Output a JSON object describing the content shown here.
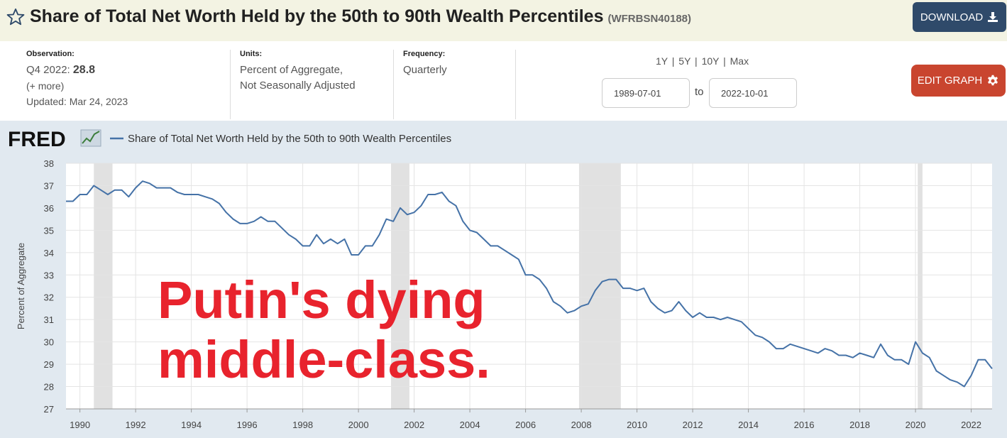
{
  "header": {
    "title": "Share of Total Net Worth Held by the 50th to 90th Wealth Percentiles",
    "series_id": "(WFRBSN40188)",
    "download_label": "DOWNLOAD"
  },
  "meta": {
    "observation_label": "Observation:",
    "observation_period": "Q4 2022:",
    "observation_value": "28.8",
    "more_label": "(+ more)",
    "updated": "Updated: Mar 24, 2023",
    "units_label": "Units:",
    "units_line1": "Percent of Aggregate,",
    "units_line2": "Not Seasonally Adjusted",
    "frequency_label": "Frequency:",
    "frequency_value": "Quarterly",
    "range_links": "1Y | 5Y | 10Y | Max",
    "start_date": "1989-07-01",
    "to_label": "to",
    "end_date": "2022-10-01",
    "edit_label": "EDIT GRAPH"
  },
  "colors": {
    "line": "#4572a7",
    "recession": "#e1e1e1",
    "overlay": "#e8232d",
    "title_bar": "#f3f3e3",
    "download": "#2f4a6a",
    "edit": "#c9452f"
  },
  "chart_data": {
    "type": "line",
    "brand": "FRED",
    "legend": "Share of Total Net Worth Held by the 50th to 90th Wealth Percentiles",
    "ylabel": "Percent of Aggregate",
    "xlabel": "",
    "ylim": [
      27,
      38
    ],
    "xlim": [
      1989.5,
      2022.75
    ],
    "yticks": [
      "27",
      "28",
      "29",
      "30",
      "31",
      "32",
      "33",
      "34",
      "35",
      "36",
      "37",
      "38"
    ],
    "xticks": [
      "1990",
      "1992",
      "1994",
      "1996",
      "1998",
      "2000",
      "2002",
      "2004",
      "2006",
      "2008",
      "2010",
      "2012",
      "2014",
      "2016",
      "2018",
      "2020",
      "2022"
    ],
    "grid": true,
    "recessions": [
      [
        1990.5,
        1991.17
      ],
      [
        2001.17,
        2001.83
      ],
      [
        2007.92,
        2009.42
      ],
      [
        2020.08,
        2020.25
      ]
    ],
    "overlay_text_line1": "Putin's dying",
    "overlay_text_line2": "middle-class.",
    "series": [
      {
        "name": "Share of Total Net Worth Held by the 50th to 90th Wealth Percentiles",
        "x": [
          1989.5,
          1989.75,
          1990.0,
          1990.25,
          1990.5,
          1990.75,
          1991.0,
          1991.25,
          1991.5,
          1991.75,
          1992.0,
          1992.25,
          1992.5,
          1992.75,
          1993.0,
          1993.25,
          1993.5,
          1993.75,
          1994.0,
          1994.25,
          1994.5,
          1994.75,
          1995.0,
          1995.25,
          1995.5,
          1995.75,
          1996.0,
          1996.25,
          1996.5,
          1996.75,
          1997.0,
          1997.25,
          1997.5,
          1997.75,
          1998.0,
          1998.25,
          1998.5,
          1998.75,
          1999.0,
          1999.25,
          1999.5,
          1999.75,
          2000.0,
          2000.25,
          2000.5,
          2000.75,
          2001.0,
          2001.25,
          2001.5,
          2001.75,
          2002.0,
          2002.25,
          2002.5,
          2002.75,
          2003.0,
          2003.25,
          2003.5,
          2003.75,
          2004.0,
          2004.25,
          2004.5,
          2004.75,
          2005.0,
          2005.25,
          2005.5,
          2005.75,
          2006.0,
          2006.25,
          2006.5,
          2006.75,
          2007.0,
          2007.25,
          2007.5,
          2007.75,
          2008.0,
          2008.25,
          2008.5,
          2008.75,
          2009.0,
          2009.25,
          2009.5,
          2009.75,
          2010.0,
          2010.25,
          2010.5,
          2010.75,
          2011.0,
          2011.25,
          2011.5,
          2011.75,
          2012.0,
          2012.25,
          2012.5,
          2012.75,
          2013.0,
          2013.25,
          2013.5,
          2013.75,
          2014.0,
          2014.25,
          2014.5,
          2014.75,
          2015.0,
          2015.25,
          2015.5,
          2015.75,
          2016.0,
          2016.25,
          2016.5,
          2016.75,
          2017.0,
          2017.25,
          2017.5,
          2017.75,
          2018.0,
          2018.25,
          2018.5,
          2018.75,
          2019.0,
          2019.25,
          2019.5,
          2019.75,
          2020.0,
          2020.25,
          2020.5,
          2020.75,
          2021.0,
          2021.25,
          2021.5,
          2021.75,
          2022.0,
          2022.25,
          2022.5,
          2022.75
        ],
        "y": [
          36.3,
          36.3,
          36.6,
          36.6,
          37.0,
          36.8,
          36.6,
          36.8,
          36.8,
          36.5,
          36.9,
          37.2,
          37.1,
          36.9,
          36.9,
          36.9,
          36.7,
          36.6,
          36.6,
          36.6,
          36.5,
          36.4,
          36.2,
          35.8,
          35.5,
          35.3,
          35.3,
          35.4,
          35.6,
          35.4,
          35.4,
          35.1,
          34.8,
          34.6,
          34.3,
          34.3,
          34.8,
          34.4,
          34.6,
          34.4,
          34.6,
          33.9,
          33.9,
          34.3,
          34.3,
          34.8,
          35.5,
          35.4,
          36.0,
          35.7,
          35.8,
          36.1,
          36.6,
          36.6,
          36.7,
          36.3,
          36.1,
          35.4,
          35.0,
          34.9,
          34.6,
          34.3,
          34.3,
          34.1,
          33.9,
          33.7,
          33.0,
          33.0,
          32.8,
          32.4,
          31.8,
          31.6,
          31.3,
          31.4,
          31.6,
          31.7,
          32.3,
          32.7,
          32.8,
          32.8,
          32.4,
          32.4,
          32.3,
          32.4,
          31.8,
          31.5,
          31.3,
          31.4,
          31.8,
          31.4,
          31.1,
          31.3,
          31.1,
          31.1,
          31.0,
          31.1,
          31.0,
          30.9,
          30.6,
          30.3,
          30.2,
          30.0,
          29.7,
          29.7,
          29.9,
          29.8,
          29.7,
          29.6,
          29.5,
          29.7,
          29.6,
          29.4,
          29.4,
          29.3,
          29.5,
          29.4,
          29.3,
          29.9,
          29.4,
          29.2,
          29.2,
          29.0,
          30.0,
          29.5,
          29.3,
          28.7,
          28.5,
          28.3,
          28.2,
          28.0,
          28.5,
          29.2,
          29.2,
          28.8
        ]
      }
    ]
  }
}
